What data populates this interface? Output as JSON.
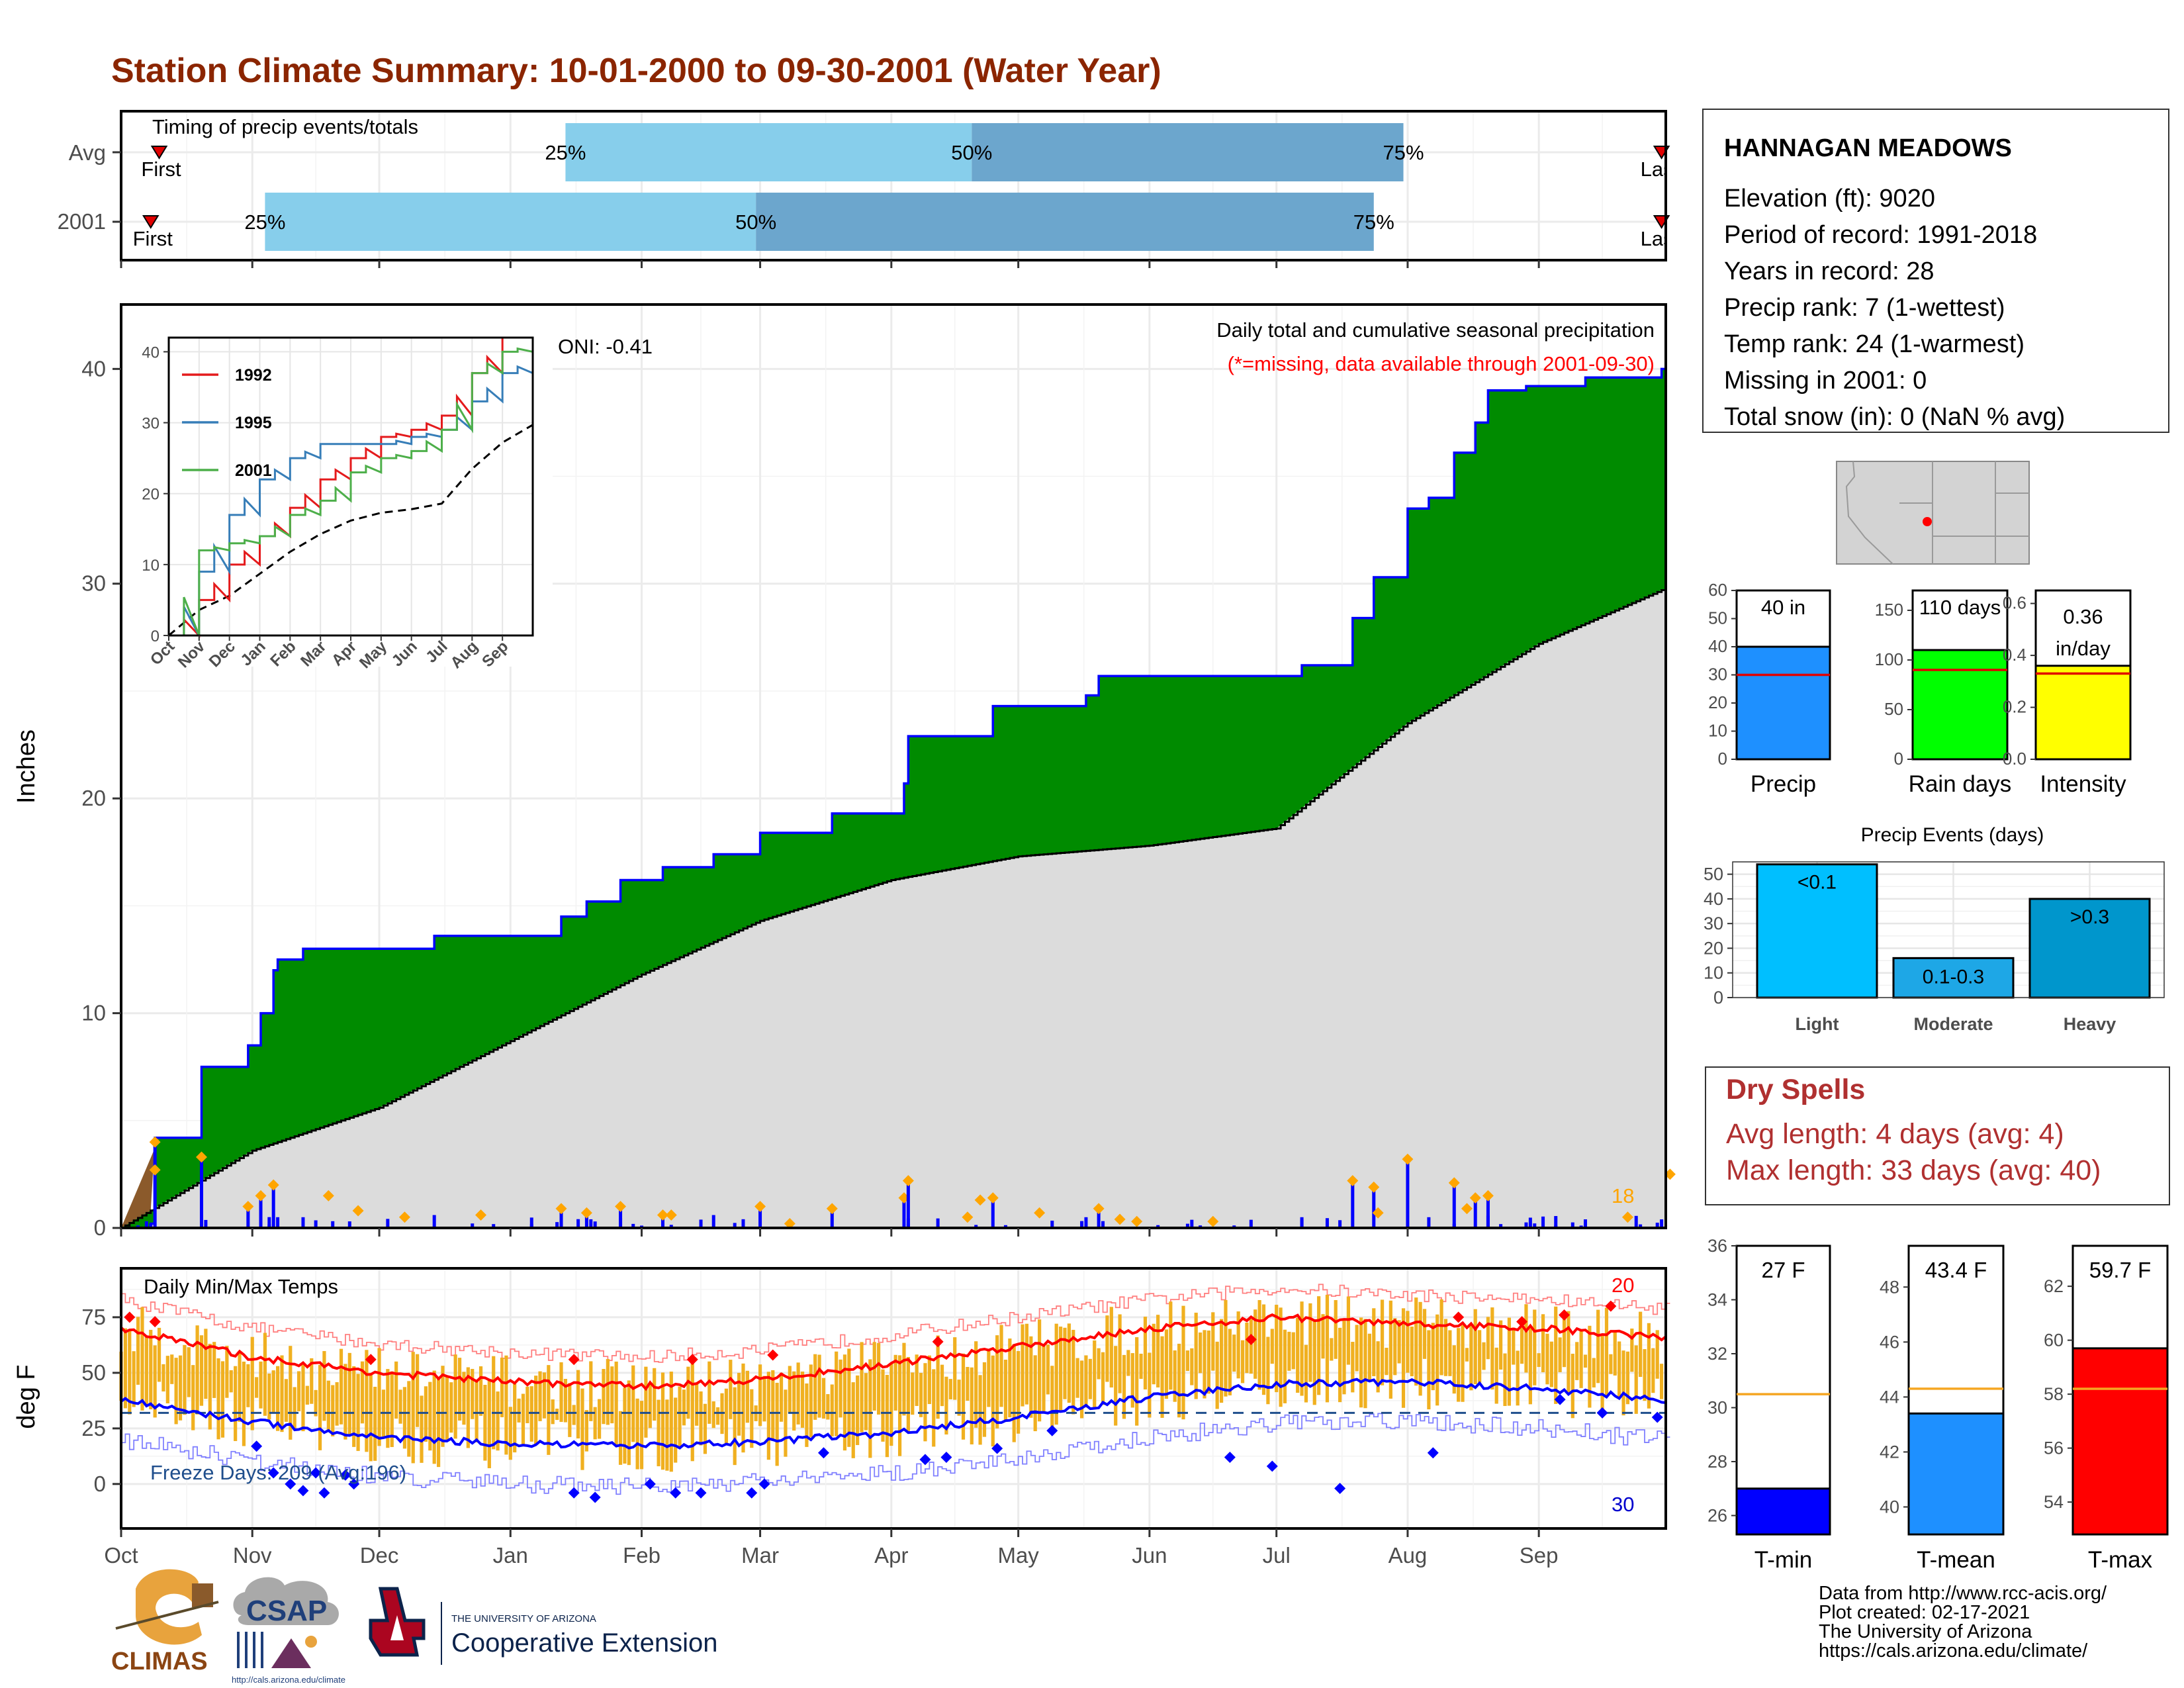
{
  "title": "Station Climate Summary: 10-01-2000 to 09-30-2001 (Water Year)",
  "timing": {
    "label": "Timing of precip events/totals",
    "rows": [
      {
        "name": "Avg",
        "first": "First",
        "last": "Last",
        "p25": "25%",
        "p50": "50%",
        "p75": "75%",
        "first_date": "2000-10-10",
        "p25_date": "2001-01-14",
        "p50_date": "2001-04-20",
        "p75_date": "2001-07-31",
        "last_date": "2001-09-30"
      },
      {
        "name": "2001",
        "first": "First",
        "last": "Last",
        "p25": "25%",
        "p50": "50%",
        "p75": "75%",
        "first_date": "2000-10-08",
        "p25_date": "2000-11-04",
        "p50_date": "2001-02-28",
        "p75_date": "2001-07-24",
        "last_date": "2001-09-30"
      }
    ]
  },
  "main": {
    "ylabel": "Inches",
    "oni": "ONI: -0.41",
    "subtitle": "Daily total and cumulative seasonal precipitation",
    "missing_note": "(*=missing, data available through 2001-09-30)",
    "count_label": "18",
    "months": [
      "Oct",
      "Nov",
      "Dec",
      "Jan",
      "Feb",
      "Mar",
      "Apr",
      "May",
      "Jun",
      "Jul",
      "Aug",
      "Sep"
    ],
    "month_starts": [
      "2000-10-01",
      "2000-11-01",
      "2000-12-01",
      "2001-01-01",
      "2001-02-01",
      "2001-03-01",
      "2001-04-01",
      "2001-05-01",
      "2001-06-01",
      "2001-07-01",
      "2001-08-01",
      "2001-09-01"
    ],
    "yticks": [
      0,
      10,
      20,
      30,
      40
    ]
  },
  "inset": {
    "legend": [
      "1992",
      "1995",
      "2001"
    ],
    "colors": [
      "#e41a1c",
      "#377eb8",
      "#4daf4a"
    ],
    "months": [
      "Oct",
      "Nov",
      "Dec",
      "Jan",
      "Feb",
      "Mar",
      "Apr",
      "May",
      "Jun",
      "Jul",
      "Aug",
      "Sep"
    ],
    "yticks": [
      0,
      10,
      20,
      30,
      40
    ]
  },
  "temps": {
    "label": "Daily Min/Max Temps",
    "ylabel": "deg F",
    "freeze": "Freeze Days: 209 (Avg:196)",
    "hot_count": "20",
    "cold_count": "30",
    "yticks": [
      0,
      25,
      50,
      75
    ]
  },
  "station": {
    "name": "HANNAGAN MEADOWS",
    "lines": [
      "Elevation (ft): 9020",
      "Period of record: 1991-2018",
      "Years in record: 28",
      "Precip rank: 7 (1-wettest)",
      "Temp rank: 24 (1-warmest)",
      "Missing in 2001: 0",
      "Total snow (in): 0 (NaN % avg)"
    ]
  },
  "summary_bars": [
    {
      "name": "Precip",
      "label": "40 in",
      "value": 40,
      "avg": 30,
      "ymax": 60,
      "ticks": [
        0,
        10,
        20,
        30,
        40,
        50,
        60
      ],
      "color": "#1e90ff"
    },
    {
      "name": "Rain days",
      "label": "110 days",
      "value": 110,
      "avg": 90,
      "ymax": 170,
      "ticks": [
        0,
        50,
        100,
        150
      ],
      "color": "#00ff00"
    },
    {
      "name": "Intensity",
      "label": "0.36 in/day",
      "label1": "0.36",
      "label2": "in/day",
      "value": 0.36,
      "avg": 0.33,
      "ymax": 0.65,
      "ticks": [
        "0.0",
        "0.2",
        "0.4",
        "0.6"
      ],
      "color": "#ffff00"
    }
  ],
  "events": {
    "title": "Precip Events (days)",
    "categories": [
      "Light",
      "Moderate",
      "Heavy"
    ],
    "values": [
      54,
      16,
      40
    ],
    "labels": [
      "<0.1",
      "0.1-0.3",
      ">0.3"
    ],
    "yticks": [
      0,
      10,
      20,
      30,
      40,
      50
    ]
  },
  "dry_spells": {
    "title": "Dry Spells",
    "avg": "Avg length: 4 days (avg: 4)",
    "max": "Max length: 33 days (avg: 40)"
  },
  "temp_bars": [
    {
      "name": "T-min",
      "label": "27 F",
      "value": 27,
      "avg": 30.5,
      "ymin": 25.3,
      "ymax": 36,
      "ticks": [
        26,
        28,
        30,
        32,
        34,
        36
      ],
      "color": "#0000ff"
    },
    {
      "name": "T-mean",
      "label": "43.4 F",
      "value": 43.4,
      "avg": 44.3,
      "ymin": 39,
      "ymax": 49.5,
      "ticks": [
        40,
        42,
        44,
        46,
        48
      ],
      "color": "#1e90ff"
    },
    {
      "name": "T-max",
      "label": "59.7 F",
      "value": 59.7,
      "avg": 58.2,
      "ymin": 52.8,
      "ymax": 63.5,
      "ticks": [
        54,
        56,
        58,
        60,
        62
      ],
      "color": "#ff0000"
    }
  ],
  "footer": {
    "lines": [
      "Data from http://www.rcc-acis.org/",
      "Plot created: 02-17-2021",
      "The University of Arizona",
      "https://cals.arizona.edu/climate/"
    ],
    "climas": "CLIMAS",
    "csap": "CSAP",
    "csap_url": "http://cals.arizona.edu/climate",
    "ua_small": "THE UNIVERSITY OF ARIZONA",
    "ua_big": "Cooperative Extension"
  },
  "chart_data": [
    {
      "type": "area",
      "title": "Daily total and cumulative seasonal precipitation",
      "ylabel": "Inches",
      "ylim": [
        0,
        43
      ],
      "series": [
        {
          "name": "2001",
          "x": [
            "2000-10-01",
            "2000-10-08",
            "2000-10-09",
            "2000-10-20",
            "2000-10-31",
            "2000-11-03",
            "2000-11-06",
            "2000-11-07",
            "2000-11-13",
            "2000-11-20",
            "2000-11-24",
            "2000-12-14",
            "2000-12-28",
            "2001-01-13",
            "2001-01-19",
            "2001-01-27",
            "2001-02-06",
            "2001-02-18",
            "2001-03-01",
            "2001-03-18",
            "2001-04-04",
            "2001-04-05",
            "2001-04-25",
            "2001-05-17",
            "2001-05-20",
            "2001-06-27",
            "2001-07-07",
            "2001-07-19",
            "2001-07-24",
            "2001-08-01",
            "2001-08-06",
            "2001-08-12",
            "2001-08-17",
            "2001-08-20",
            "2001-08-29",
            "2001-09-12",
            "2001-09-30"
          ],
          "values": [
            0,
            0.2,
            4.2,
            7.5,
            8.5,
            10,
            12,
            12.5,
            13,
            13,
            13,
            13.6,
            13.6,
            14.5,
            15.2,
            16.2,
            16.8,
            17.4,
            18.4,
            19.3,
            20.7,
            22.9,
            24.3,
            24.8,
            25.7,
            25.7,
            26.2,
            28.4,
            30.3,
            33.5,
            34.0,
            36.1,
            37.5,
            39.0,
            39.2,
            39.6,
            40.0
          ]
        },
        {
          "name": "Avg",
          "x": [
            "2000-10-01",
            "2000-11-01",
            "2000-12-01",
            "2001-01-01",
            "2001-02-01",
            "2001-03-01",
            "2001-04-01",
            "2001-05-01",
            "2001-06-01",
            "2001-07-01",
            "2001-08-01",
            "2001-09-01",
            "2001-09-30"
          ],
          "values": [
            0,
            3.6,
            5.6,
            8.7,
            11.8,
            14.3,
            16.2,
            17.3,
            17.8,
            18.6,
            23.5,
            27.2,
            29.7
          ]
        }
      ]
    },
    {
      "type": "line",
      "title": "",
      "series": [
        {
          "name": "1992",
          "x": [
            "Oct",
            "Nov",
            "Dec",
            "Jan",
            "Feb",
            "Mar",
            "Apr",
            "May",
            "Jun",
            "Jul",
            "Aug",
            "Sep",
            "Sep30"
          ],
          "values": [
            0,
            5,
            10,
            14,
            18,
            22,
            25,
            28,
            29,
            31,
            37,
            42,
            42
          ]
        },
        {
          "name": "1995",
          "x": [
            "Oct",
            "Nov",
            "Dec",
            "Jan",
            "Feb",
            "Mar",
            "Apr",
            "May",
            "Jun",
            "Jul",
            "Aug",
            "Sep",
            "Sep30"
          ],
          "values": [
            0,
            9,
            17,
            22,
            25,
            27,
            27,
            27,
            28,
            29,
            33,
            37,
            39
          ]
        },
        {
          "name": "2001",
          "x": [
            "Oct",
            "Nov",
            "Dec",
            "Jan",
            "Feb",
            "Mar",
            "Apr",
            "May",
            "Jun",
            "Jul",
            "Aug",
            "Sep",
            "Sep30"
          ],
          "values": [
            0,
            12,
            13,
            14,
            17,
            19,
            23,
            25,
            26,
            29,
            37,
            40,
            41
          ]
        }
      ]
    },
    {
      "type": "line",
      "title": "Daily Min/Max Temps",
      "ylabel": "deg F",
      "ylim": [
        -20,
        97
      ],
      "series": [
        {
          "name": "avg max",
          "x": [
            "2000-10-01",
            "2000-11-01",
            "2000-12-01",
            "2001-01-01",
            "2001-02-01",
            "2001-03-01",
            "2001-04-01",
            "2001-05-01",
            "2001-06-01",
            "2001-07-01",
            "2001-08-01",
            "2001-09-01",
            "2001-09-30"
          ],
          "values": [
            70,
            57,
            50,
            46,
            44,
            47,
            54,
            62,
            70,
            75,
            72,
            70,
            66
          ]
        },
        {
          "name": "avg min",
          "x": [
            "2000-10-01",
            "2000-11-01",
            "2000-12-01",
            "2001-01-01",
            "2001-02-01",
            "2001-03-01",
            "2001-04-01",
            "2001-05-01",
            "2001-06-01",
            "2001-07-01",
            "2001-08-01",
            "2001-09-01",
            "2001-09-30"
          ],
          "values": [
            38,
            28,
            21,
            18,
            17,
            19,
            23,
            30,
            39,
            45,
            46,
            43,
            38
          ]
        }
      ]
    },
    {
      "type": "bar",
      "title": "",
      "categories": [
        "Precip",
        "Rain days",
        "Intensity"
      ],
      "values": [
        40,
        110,
        0.36
      ]
    },
    {
      "type": "bar",
      "title": "Precip Events (days)",
      "categories": [
        "Light",
        "Moderate",
        "Heavy"
      ],
      "values": [
        54,
        16,
        40
      ]
    },
    {
      "type": "bar",
      "title": "",
      "categories": [
        "T-min",
        "T-mean",
        "T-max"
      ],
      "values": [
        27,
        43.4,
        59.7
      ]
    }
  ]
}
